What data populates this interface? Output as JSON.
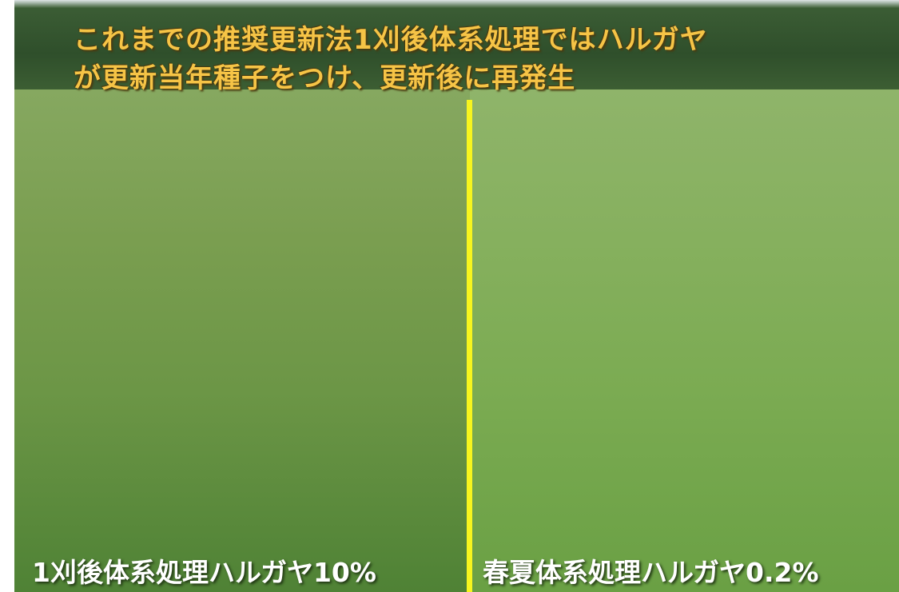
{
  "title": {
    "line1": "これまでの推奨更新法1刈後体系処理ではハルガヤ",
    "line2": "が更新当年種子をつけ、更新後に再発生"
  },
  "captions": {
    "left": "1刈後体系処理ハルガヤ10%",
    "right": "春夏体系処理ハルガヤ0.2%"
  }
}
